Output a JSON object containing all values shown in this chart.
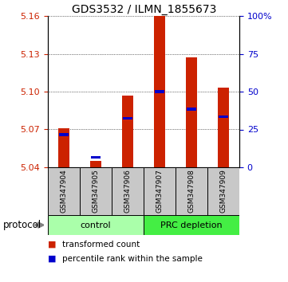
{
  "title": "GDS3532 / ILMN_1855673",
  "samples": [
    "GSM347904",
    "GSM347905",
    "GSM347906",
    "GSM347907",
    "GSM347908",
    "GSM347909"
  ],
  "red_values": [
    5.071,
    5.045,
    5.097,
    5.16,
    5.127,
    5.103
  ],
  "blue_values": [
    5.066,
    5.048,
    5.079,
    5.1,
    5.086,
    5.08
  ],
  "ylim_left": [
    5.04,
    5.16
  ],
  "yticks_left": [
    5.04,
    5.07,
    5.1,
    5.13,
    5.16
  ],
  "yticks_right": [
    0,
    25,
    50,
    75,
    100
  ],
  "yticklabels_right": [
    "0",
    "25",
    "50",
    "75",
    "100%"
  ],
  "left_axis_color": "#cc2200",
  "right_axis_color": "#0000cc",
  "bar_color": "#cc2200",
  "blue_marker_color": "#0000cc",
  "groups": [
    {
      "label": "control",
      "indices": [
        0,
        1,
        2
      ],
      "color": "#aaffaa"
    },
    {
      "label": "PRC depletion",
      "indices": [
        3,
        4,
        5
      ],
      "color": "#44ee44"
    }
  ],
  "protocol_label": "protocol",
  "legend_items": [
    {
      "color": "#cc2200",
      "label": "transformed count"
    },
    {
      "color": "#0000cc",
      "label": "percentile rank within the sample"
    }
  ],
  "base_value": 5.04,
  "bar_width": 0.35,
  "grid_linestyle": "dotted",
  "sample_box_color": "#c8c8c8",
  "title_fontsize": 10,
  "tick_fontsize": 8,
  "legend_fontsize": 7.5,
  "sample_fontsize": 6.5,
  "proto_fontsize": 8
}
